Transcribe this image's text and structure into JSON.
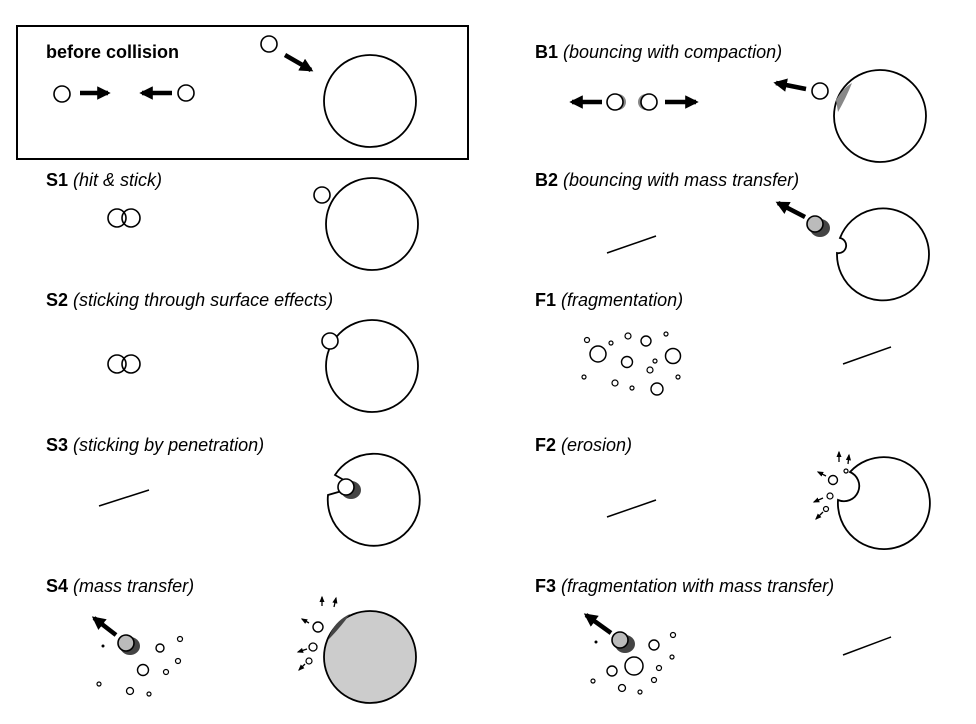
{
  "before": {
    "label": "before collision"
  },
  "panels": {
    "S1": {
      "code": "S1",
      "desc": "(hit & stick)"
    },
    "S2": {
      "code": "S2",
      "desc": "(sticking through surface effects)"
    },
    "S3": {
      "code": "S3",
      "desc": "(sticking by penetration)"
    },
    "S4": {
      "code": "S4",
      "desc": "(mass transfer)"
    },
    "B1": {
      "code": "B1",
      "desc": "(bouncing with compaction)"
    },
    "B2": {
      "code": "B2",
      "desc": "(bouncing with mass transfer)"
    },
    "F1": {
      "code": "F1",
      "desc": "(fragmentation)"
    },
    "F2": {
      "code": "F2",
      "desc": "(erosion)"
    },
    "F3": {
      "code": "F3",
      "desc": "(fragmentation with mass transfer)"
    }
  },
  "colors": {
    "stroke": "#000000",
    "transferred_mass": "#444444",
    "transferred_target": "#cccccc",
    "transferred_particle": "#bbbbbb"
  }
}
